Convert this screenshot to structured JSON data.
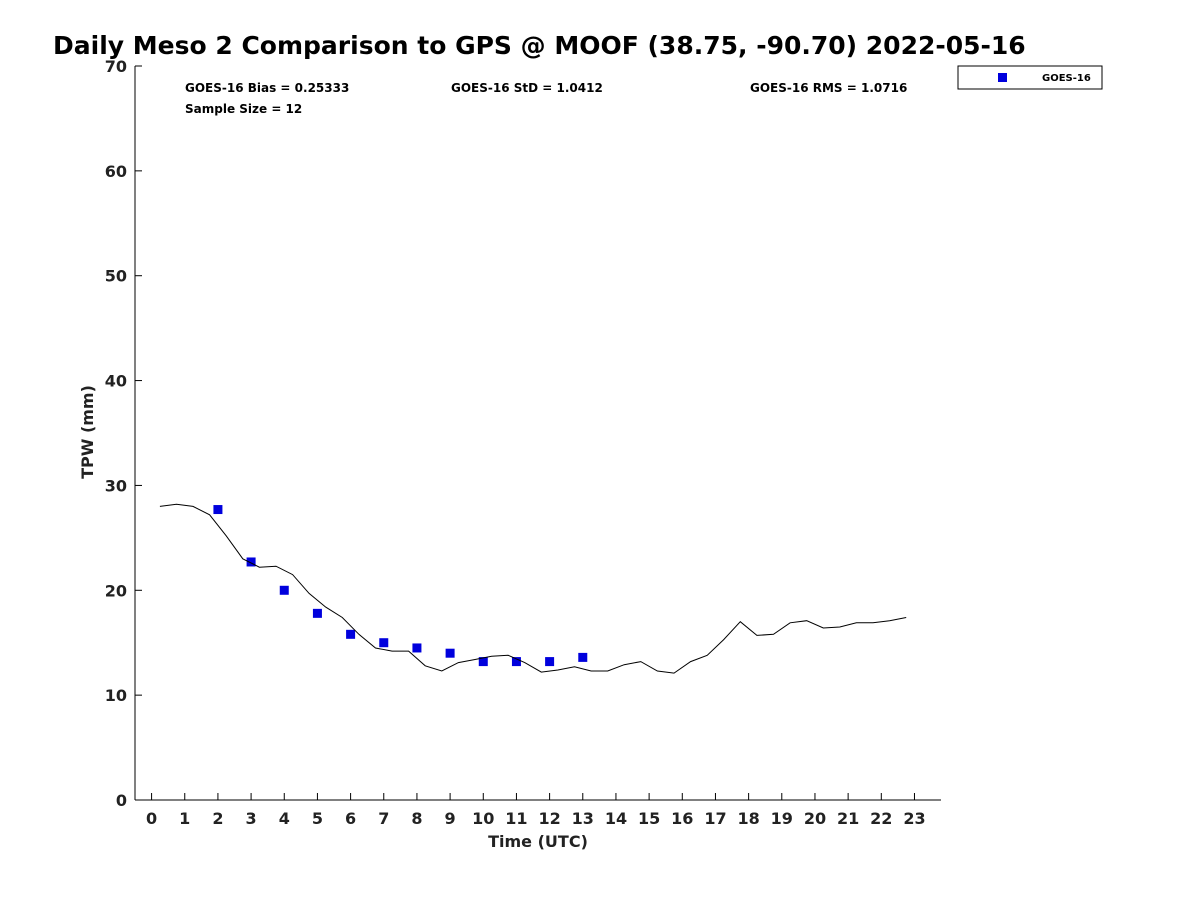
{
  "chart_data": {
    "type": "scatter",
    "title": "Daily Meso 2 Comparison to GPS @ MOOF (38.75, -90.70) 2022-05-16",
    "xlabel": "Time (UTC)",
    "ylabel": "TPW (mm)",
    "xlim": [
      -0.5,
      23.8
    ],
    "ylim": [
      0,
      70
    ],
    "xticks": [
      0,
      1,
      2,
      3,
      4,
      5,
      6,
      7,
      8,
      9,
      10,
      11,
      12,
      13,
      14,
      15,
      16,
      17,
      18,
      19,
      20,
      21,
      22,
      23
    ],
    "yticks": [
      0,
      10,
      20,
      30,
      40,
      50,
      60,
      70
    ],
    "grid": false,
    "legend_position": "top-right",
    "stats": {
      "bias": "GOES-16 Bias = 0.25333",
      "std": "GOES-16 StD = 1.0412",
      "rms": "GOES-16 RMS = 1.0716",
      "sample": "Sample Size = 12"
    },
    "series": [
      {
        "name": "GOES-16",
        "kind": "scatter",
        "marker": "square",
        "color": "#0000dd",
        "x": [
          2,
          3,
          4,
          5,
          6,
          7,
          8,
          9,
          10,
          11,
          12,
          13
        ],
        "y": [
          27.7,
          22.7,
          20.0,
          17.8,
          15.8,
          15.0,
          14.5,
          14.0,
          13.2,
          13.2,
          13.2,
          13.6
        ]
      },
      {
        "kind": "line",
        "color": "#000000",
        "x": [
          0.25,
          0.75,
          1.25,
          1.75,
          2.25,
          2.75,
          3.25,
          3.75,
          4.25,
          4.75,
          5.25,
          5.75,
          6.25,
          6.75,
          7.25,
          7.75,
          8.25,
          8.75,
          9.25,
          9.75,
          10.25,
          10.75,
          11.25,
          11.75,
          12.25,
          12.75,
          13.25,
          13.75,
          14.25,
          14.75,
          15.25,
          15.75,
          16.25,
          16.75,
          17.25,
          17.75,
          18.25,
          18.75,
          19.25,
          19.75,
          20.25,
          20.75,
          21.25,
          21.75,
          22.25,
          22.75
        ],
        "y": [
          28.0,
          28.2,
          28.0,
          27.2,
          25.2,
          23.0,
          22.2,
          22.3,
          21.5,
          19.7,
          18.4,
          17.4,
          15.8,
          14.5,
          14.2,
          14.2,
          12.8,
          12.3,
          13.1,
          13.4,
          13.7,
          13.8,
          13.1,
          12.2,
          12.4,
          12.7,
          12.3,
          12.3,
          12.9,
          13.2,
          12.3,
          12.1,
          13.2,
          13.8,
          15.3,
          17.0,
          15.7,
          15.8,
          16.9,
          17.1,
          16.4,
          16.5,
          16.9,
          16.9,
          17.1,
          17.4
        ]
      }
    ]
  }
}
